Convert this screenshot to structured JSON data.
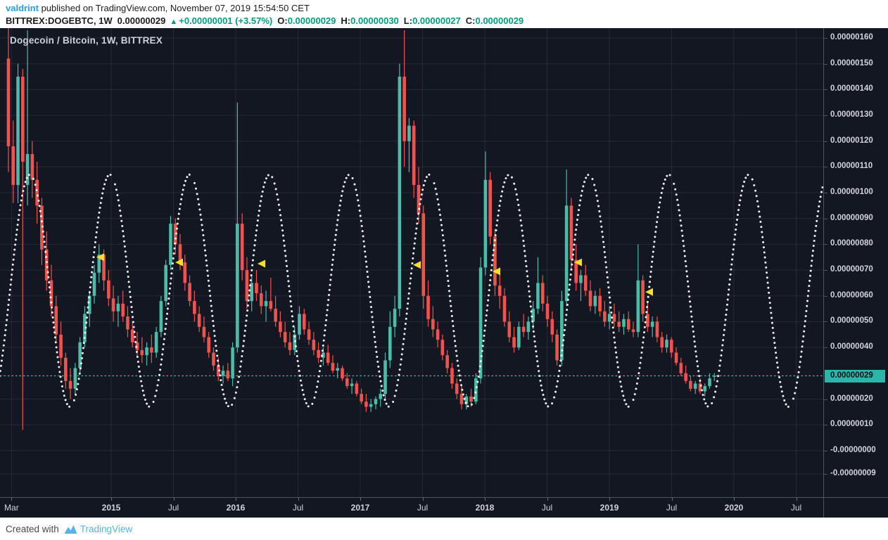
{
  "header": {
    "author": "valdrint",
    "byline_rest": " published on TradingView.com, November 07, 2019 15:54:50 CET",
    "ticker": {
      "symbol_tf": "BITTREX:DOGEBTC, 1W",
      "last": "0.00000029",
      "arrow": "▲",
      "change": "+0.00000001 (+3.57%)",
      "o_label": "O:",
      "o_value": "0.00000029",
      "h_label": "H:",
      "h_value": "0.00000030",
      "l_label": "L:",
      "l_value": "0.00000027",
      "c_label": "C:",
      "c_value": "0.00000029"
    }
  },
  "chart": {
    "legend": "Dogecoin / Bitcoin, 1W, BITTREX"
  },
  "footer": {
    "created_with": "Created with",
    "brand": "TradingView"
  },
  "colors": {
    "background": "#131722",
    "grid": "rgba(255,255,255,0.08)",
    "candle_up": "#4cbba8",
    "candle_down": "#ef5350",
    "sine_dots": "#f0f1f3",
    "marker_yellow": "#f7df2b",
    "price_line": "#3fbfae",
    "last_label_bg": "#2cb5a8",
    "axis_text": "#d1d4dc",
    "header_green": "#089981",
    "author_blue": "#2d9cdb",
    "brand_blue": "#56b3e2"
  },
  "chart_data": {
    "type": "candlestick",
    "symbol": "BITTREX:DOGEBTC",
    "timeframe": "1W",
    "title": "Dogecoin / Bitcoin, 1W, BITTREX",
    "price_unit": "BTC, values in 1e-8 BTC",
    "grid": true,
    "ylim": [
      -18,
      163.3
    ],
    "xlim_years": [
      2014.11,
      2020.72
    ],
    "y_axis_ticks": [
      {
        "label": "0.00000160",
        "value": 160
      },
      {
        "label": "0.00000150",
        "value": 150
      },
      {
        "label": "0.00000140",
        "value": 140
      },
      {
        "label": "0.00000130",
        "value": 130
      },
      {
        "label": "0.00000120",
        "value": 120
      },
      {
        "label": "0.00000110",
        "value": 110
      },
      {
        "label": "0.00000100",
        "value": 100
      },
      {
        "label": "0.00000090",
        "value": 90
      },
      {
        "label": "0.00000080",
        "value": 80
      },
      {
        "label": "0.00000070",
        "value": 70
      },
      {
        "label": "0.00000060",
        "value": 60
      },
      {
        "label": "0.00000050",
        "value": 50
      },
      {
        "label": "0.00000040",
        "value": 40
      },
      {
        "label": "0.00000020",
        "value": 20
      },
      {
        "label": "0.00000010",
        "value": 10
      },
      {
        "label": "-0.00000000",
        "value": 0
      },
      {
        "label": "-0.00000009",
        "value": -9
      }
    ],
    "x_axis_ticks": [
      {
        "label": "Mar",
        "t": 2014.2,
        "bold": false
      },
      {
        "label": "2015",
        "t": 2015.0,
        "bold": true
      },
      {
        "label": "Jul",
        "t": 2015.5,
        "bold": false
      },
      {
        "label": "2016",
        "t": 2016.0,
        "bold": true
      },
      {
        "label": "Jul",
        "t": 2016.5,
        "bold": false
      },
      {
        "label": "2017",
        "t": 2017.0,
        "bold": true
      },
      {
        "label": "Jul",
        "t": 2017.5,
        "bold": false
      },
      {
        "label": "2018",
        "t": 2018.0,
        "bold": true
      },
      {
        "label": "Jul",
        "t": 2018.5,
        "bold": false
      },
      {
        "label": "2019",
        "t": 2019.0,
        "bold": true
      },
      {
        "label": "Jul",
        "t": 2019.5,
        "bold": false
      },
      {
        "label": "2020",
        "t": 2020.0,
        "bold": true
      },
      {
        "label": "Jul",
        "t": 2020.5,
        "bold": false
      }
    ],
    "current_price": {
      "label": "0.00000029",
      "value": 29,
      "prev_close": 28
    },
    "sine_overlay": {
      "style": "dotted",
      "mid_price": 62,
      "amplitude": 45,
      "period_years": 0.6412,
      "first_peak_t": 2014.989
    },
    "markers": [
      {
        "t": 2014.915,
        "price": 75,
        "shape": "triangle-left",
        "color": "yellow"
      },
      {
        "t": 2015.548,
        "price": 73,
        "shape": "triangle-left",
        "color": "yellow"
      },
      {
        "t": 2016.209,
        "price": 72.5,
        "shape": "triangle-left",
        "color": "yellow"
      },
      {
        "t": 2017.458,
        "price": 72,
        "shape": "triangle-left",
        "color": "yellow"
      },
      {
        "t": 2018.096,
        "price": 69.5,
        "shape": "triangle-left",
        "color": "yellow"
      },
      {
        "t": 2018.751,
        "price": 73,
        "shape": "triangle-left",
        "color": "yellow"
      },
      {
        "t": 2019.322,
        "price": 61.5,
        "shape": "triangle-left",
        "color": "yellow"
      }
    ],
    "candles_t_start": 2014.175,
    "candles_t_step": 0.0383,
    "candles_ohlc": [
      [
        152,
        166,
        108,
        118
      ],
      [
        118,
        128,
        96,
        103
      ],
      [
        103,
        150,
        96,
        145
      ],
      [
        145,
        148,
        8,
        112
      ],
      [
        103,
        163,
        95,
        115
      ],
      [
        115,
        120,
        98,
        105
      ],
      [
        105,
        112,
        88,
        95
      ],
      [
        95,
        98,
        72,
        78
      ],
      [
        78,
        85,
        62,
        66
      ],
      [
        66,
        72,
        52,
        56
      ],
      [
        56,
        60,
        42,
        45
      ],
      [
        45,
        50,
        33,
        36
      ],
      [
        36,
        38,
        24,
        27
      ],
      [
        27,
        32,
        20,
        24
      ],
      [
        24,
        34,
        22,
        32
      ],
      [
        32,
        44,
        30,
        42
      ],
      [
        42,
        56,
        40,
        53
      ],
      [
        53,
        62,
        48,
        60
      ],
      [
        60,
        72,
        57,
        69
      ],
      [
        69,
        80,
        65,
        76
      ],
      [
        76,
        78,
        62,
        66
      ],
      [
        66,
        70,
        56,
        59
      ],
      [
        59,
        64,
        50,
        54
      ],
      [
        54,
        60,
        48,
        57
      ],
      [
        57,
        62,
        50,
        52
      ],
      [
        52,
        56,
        44,
        47
      ],
      [
        47,
        50,
        40,
        42
      ],
      [
        42,
        46,
        36,
        39
      ],
      [
        39,
        44,
        34,
        37
      ],
      [
        37,
        42,
        33,
        40
      ],
      [
        40,
        45,
        34,
        38
      ],
      [
        38,
        48,
        36,
        46
      ],
      [
        46,
        60,
        44,
        58
      ],
      [
        58,
        74,
        56,
        72
      ],
      [
        72,
        91,
        70,
        88
      ],
      [
        88,
        90,
        76,
        80
      ],
      [
        80,
        84,
        70,
        73
      ],
      [
        73,
        76,
        62,
        65
      ],
      [
        65,
        68,
        56,
        58
      ],
      [
        58,
        62,
        50,
        53
      ],
      [
        53,
        56,
        46,
        48
      ],
      [
        48,
        52,
        42,
        44
      ],
      [
        44,
        46,
        36,
        38
      ],
      [
        38,
        40,
        31,
        33
      ],
      [
        33,
        36,
        27,
        29
      ],
      [
        29,
        33,
        26,
        31
      ],
      [
        31,
        34,
        27,
        28
      ],
      [
        28,
        42,
        25,
        40
      ],
      [
        40,
        135,
        38,
        88
      ],
      [
        88,
        92,
        66,
        70
      ],
      [
        70,
        75,
        55,
        58
      ],
      [
        58,
        68,
        54,
        65
      ],
      [
        65,
        70,
        58,
        61
      ],
      [
        61,
        64,
        53,
        56
      ],
      [
        56,
        62,
        50,
        58
      ],
      [
        58,
        67,
        54,
        55
      ],
      [
        55,
        60,
        48,
        50
      ],
      [
        50,
        54,
        44,
        46
      ],
      [
        46,
        50,
        40,
        42
      ],
      [
        42,
        46,
        37,
        39
      ],
      [
        39,
        48,
        37,
        45
      ],
      [
        45,
        56,
        43,
        53
      ],
      [
        53,
        55,
        45,
        47
      ],
      [
        47,
        50,
        41,
        43
      ],
      [
        43,
        46,
        37,
        39
      ],
      [
        39,
        42,
        34,
        36
      ],
      [
        36,
        40,
        33,
        38
      ],
      [
        38,
        41,
        33,
        34
      ],
      [
        34,
        37,
        30,
        31
      ],
      [
        31,
        34,
        28,
        32
      ],
      [
        32,
        33,
        27,
        28
      ],
      [
        28,
        30,
        24,
        25
      ],
      [
        25,
        28,
        22,
        26
      ],
      [
        26,
        27,
        21,
        22
      ],
      [
        22,
        24,
        18,
        19
      ],
      [
        19,
        22,
        15,
        17
      ],
      [
        17,
        20,
        15,
        18
      ],
      [
        18,
        21,
        16,
        20
      ],
      [
        20,
        24,
        17,
        22
      ],
      [
        22,
        38,
        20,
        35
      ],
      [
        35,
        54,
        32,
        48
      ],
      [
        48,
        60,
        44,
        55
      ],
      [
        55,
        150,
        52,
        145
      ],
      [
        145,
        163,
        110,
        120
      ],
      [
        120,
        129,
        108,
        126
      ],
      [
        126,
        128,
        98,
        103
      ],
      [
        103,
        110,
        88,
        92
      ],
      [
        92,
        95,
        55,
        60
      ],
      [
        60,
        66,
        48,
        51
      ],
      [
        51,
        56,
        44,
        47
      ],
      [
        47,
        50,
        40,
        43
      ],
      [
        43,
        45,
        35,
        37
      ],
      [
        37,
        39,
        30,
        32
      ],
      [
        32,
        34,
        24,
        26
      ],
      [
        26,
        28,
        20,
        22
      ],
      [
        22,
        25,
        16,
        18
      ],
      [
        18,
        22,
        16,
        21
      ],
      [
        21,
        24,
        17,
        19
      ],
      [
        19,
        30,
        18,
        28
      ],
      [
        28,
        75,
        26,
        71
      ],
      [
        71,
        116,
        68,
        105
      ],
      [
        105,
        108,
        80,
        83
      ],
      [
        83,
        86,
        60,
        64
      ],
      [
        64,
        70,
        55,
        60
      ],
      [
        60,
        63,
        48,
        50
      ],
      [
        50,
        54,
        42,
        44
      ],
      [
        44,
        48,
        38,
        40
      ],
      [
        40,
        50,
        39,
        48
      ],
      [
        48,
        53,
        44,
        46
      ],
      [
        46,
        52,
        43,
        50
      ],
      [
        50,
        58,
        47,
        55
      ],
      [
        55,
        75,
        53,
        65
      ],
      [
        65,
        68,
        54,
        57
      ],
      [
        57,
        60,
        48,
        51
      ],
      [
        51,
        54,
        42,
        45
      ],
      [
        45,
        47,
        33,
        35
      ],
      [
        35,
        62,
        33,
        58
      ],
      [
        58,
        109,
        56,
        95
      ],
      [
        95,
        98,
        70,
        74
      ],
      [
        74,
        80,
        62,
        65
      ],
      [
        65,
        70,
        58,
        68
      ],
      [
        68,
        72,
        60,
        62
      ],
      [
        62,
        66,
        54,
        56
      ],
      [
        56,
        62,
        53,
        60
      ],
      [
        60,
        63,
        52,
        54
      ],
      [
        54,
        58,
        48,
        50
      ],
      [
        50,
        56,
        47,
        53
      ],
      [
        53,
        57,
        48,
        50
      ],
      [
        50,
        54,
        46,
        48
      ],
      [
        48,
        53,
        45,
        51
      ],
      [
        51,
        54,
        46,
        47
      ],
      [
        47,
        50,
        44,
        46
      ],
      [
        46,
        80,
        44,
        66
      ],
      [
        66,
        68,
        50,
        53
      ],
      [
        53,
        58,
        46,
        48
      ],
      [
        48,
        52,
        44,
        50
      ],
      [
        50,
        52,
        42,
        44
      ],
      [
        44,
        46,
        38,
        40
      ],
      [
        40,
        45,
        38,
        43
      ],
      [
        43,
        44,
        36,
        38
      ],
      [
        38,
        40,
        33,
        34
      ],
      [
        34,
        36,
        29,
        30
      ],
      [
        30,
        33,
        26,
        27
      ],
      [
        27,
        29,
        23,
        24
      ],
      [
        24,
        27,
        22,
        26
      ],
      [
        26,
        28,
        22,
        23
      ],
      [
        23,
        26,
        21,
        25
      ],
      [
        25,
        30,
        24,
        28
      ],
      [
        29,
        30,
        27,
        29
      ]
    ]
  }
}
